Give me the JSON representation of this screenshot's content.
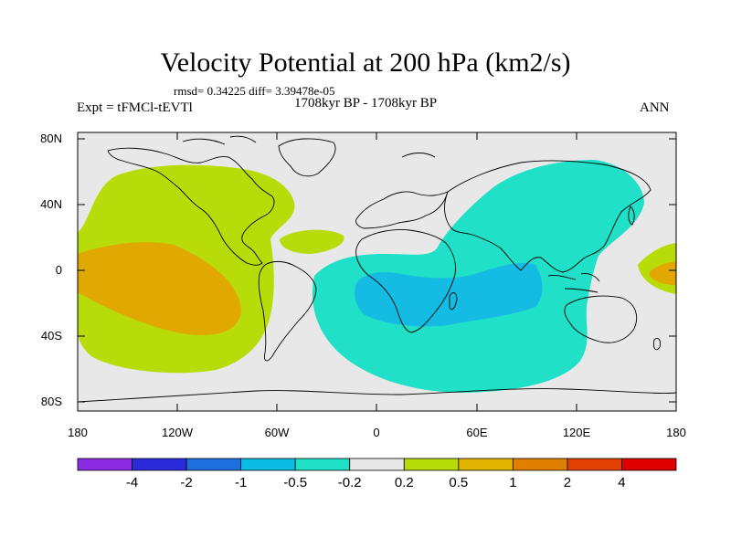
{
  "title": "Velocity Potential at 200 hPa (km2/s)",
  "stats": "rmsd= 0.34225 diff= 3.39478e-05",
  "experiment": "Expt = tFMCl-tEVTl",
  "period": "1708kyr BP - 1708kyr BP",
  "season": "ANN",
  "lat_labels": [
    "80N",
    "40N",
    "0",
    "40S",
    "80S"
  ],
  "lon_labels": [
    "180",
    "120W",
    "60W",
    "0",
    "60E",
    "120E",
    "180"
  ],
  "colorbar": {
    "colors": [
      "#8a2be2",
      "#2b2bdc",
      "#1e6fe0",
      "#0bbde5",
      "#20e0c8",
      "#e8e8e8",
      "#b8dc0a",
      "#e0b400",
      "#e08000",
      "#e04000",
      "#e00000"
    ],
    "labels": [
      "-4",
      "-2",
      "-1",
      "-0.5",
      "-0.2",
      "0.2",
      "0.5",
      "1",
      "2",
      "4"
    ]
  },
  "regions": {
    "positive_light": "#b8dc0a",
    "positive_mid": "#e0a800",
    "negative_light": "#20e0c8",
    "negative_mid": "#14bce4",
    "neutral": "#e8e8e8"
  }
}
